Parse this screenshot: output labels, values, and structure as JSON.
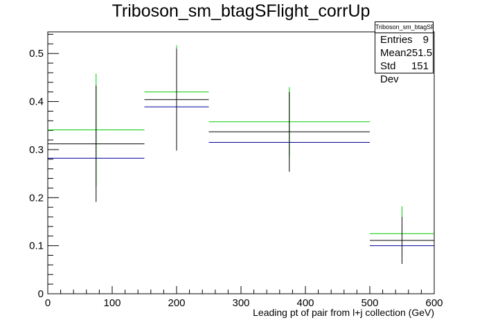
{
  "chart_data": {
    "type": "histogram",
    "title": "Triboson_sm_btagSFlight_corrUp",
    "xlabel": "Leading pt of pair from l+j collection (GeV)",
    "ylabel": "",
    "xlim": [
      0,
      600
    ],
    "ylim": [
      0,
      0.545
    ],
    "x_ticks": [
      0,
      100,
      200,
      300,
      400,
      500,
      600
    ],
    "y_ticks": [
      0,
      0.1,
      0.2,
      0.3,
      0.4,
      0.5
    ],
    "bin_edges": [
      [
        0,
        150
      ],
      [
        150,
        250
      ],
      [
        250,
        500
      ],
      [
        500,
        600
      ]
    ],
    "series": [
      {
        "color": "#00cc00",
        "values": [
          0.341,
          0.42,
          0.358,
          0.125
        ],
        "errors": [
          0.117,
          0.097,
          0.072,
          0.057
        ]
      },
      {
        "color": "#000000",
        "values": [
          0.312,
          0.404,
          0.337,
          0.111
        ],
        "errors": [
          0.121,
          0.106,
          0.083,
          0.049
        ]
      },
      {
        "color": "#000099",
        "values": [
          0.282,
          0.389,
          0.315,
          0.1
        ],
        "errors": [
          0.0,
          0.0,
          0.0,
          0.0
        ]
      }
    ],
    "grid": false,
    "legend": "none"
  },
  "stats": {
    "name": "Triboson_sm_btagSFlight_corrUp",
    "entries_label": "Entries",
    "entries_value": "9",
    "mean_label": "Mean",
    "mean_value": "251.5",
    "stddev_label": "Std Dev",
    "stddev_value": "151"
  }
}
